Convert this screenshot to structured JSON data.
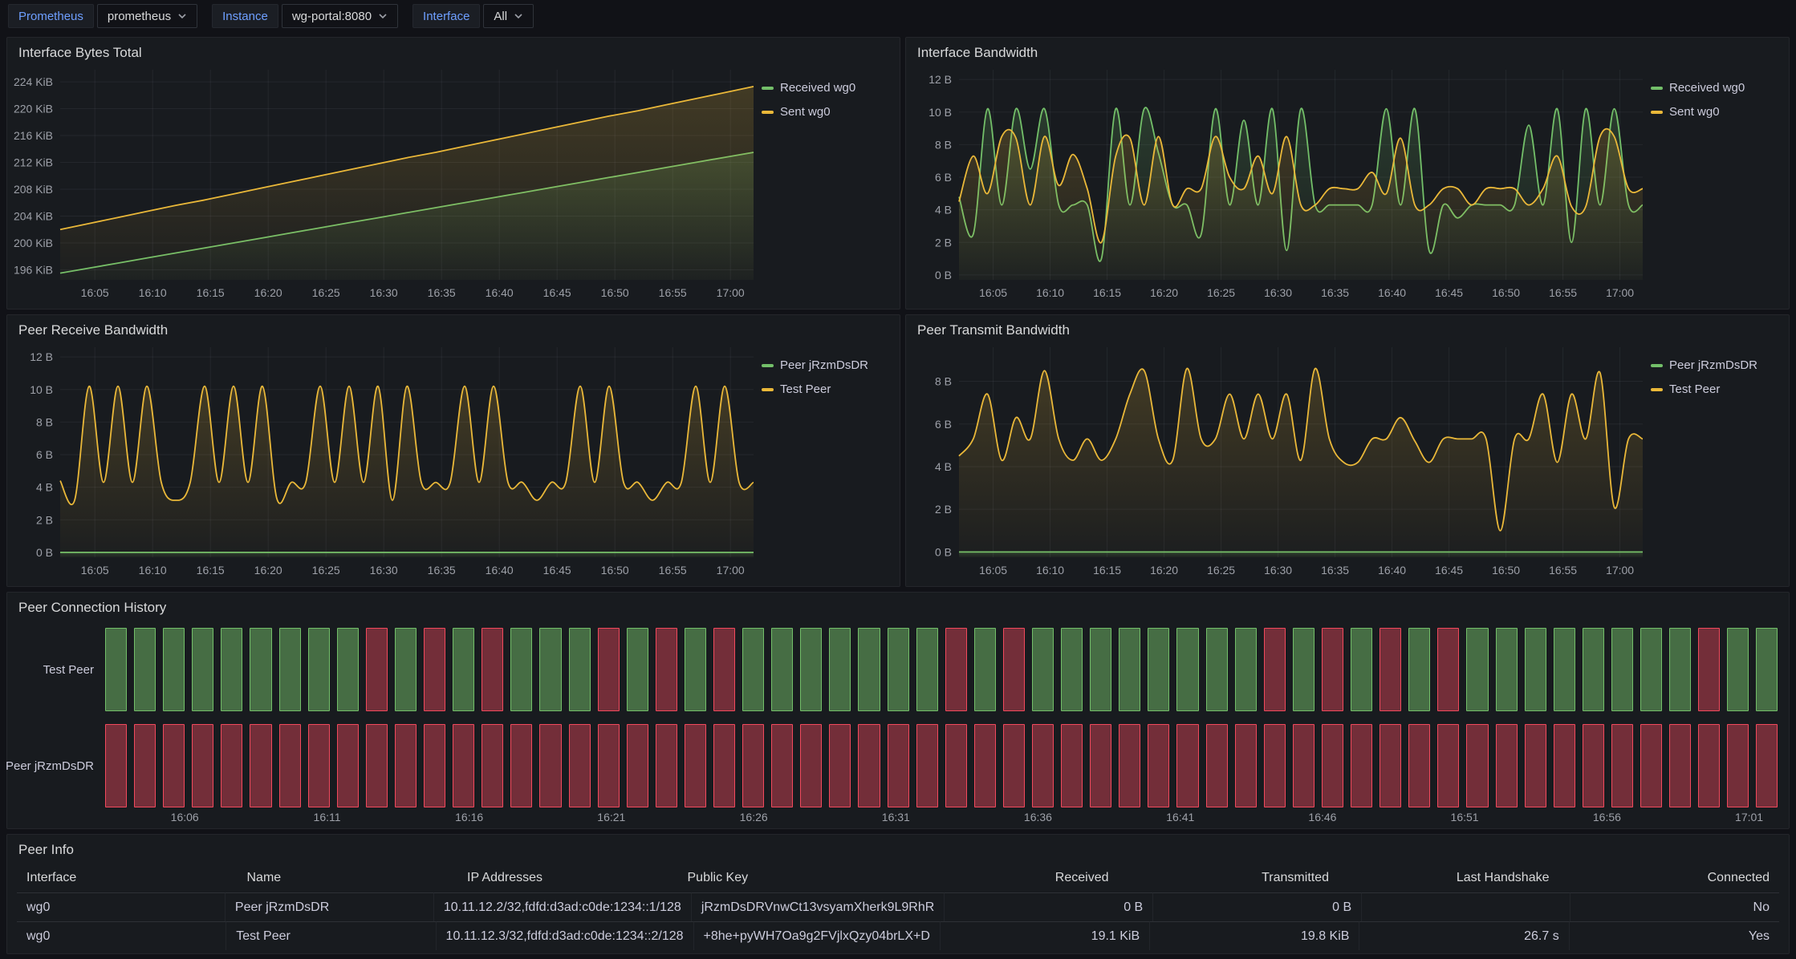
{
  "topbar": {
    "variables": [
      {
        "label": "Prometheus",
        "value": "prometheus"
      },
      {
        "label": "Instance",
        "value": "wg-portal:8080"
      },
      {
        "label": "Interface",
        "value": "All"
      }
    ]
  },
  "colors": {
    "green": "#73BF69",
    "yellow": "#EAB839",
    "red": "#F2495C",
    "connected_yes": "#73BF69",
    "connected_no": "#F2495C"
  },
  "chart_data": [
    {
      "id": "interface-bytes-total",
      "type": "line",
      "title": "Interface Bytes Total",
      "smooth": false,
      "x_start": 2,
      "x_step": 2.5,
      "xlim": [
        2,
        62
      ],
      "ylim": [
        194.5,
        225.8
      ],
      "yticks": [
        196,
        200,
        204,
        208,
        212,
        216,
        220,
        224
      ],
      "ytick_labels": [
        "196 KiB",
        "200 KiB",
        "204 KiB",
        "208 KiB",
        "212 KiB",
        "216 KiB",
        "220 KiB",
        "224 KiB"
      ],
      "xticks": [
        5,
        10,
        15,
        20,
        25,
        30,
        35,
        40,
        45,
        50,
        55,
        60
      ],
      "xtick_labels": [
        "16:05",
        "16:10",
        "16:15",
        "16:20",
        "16:25",
        "16:30",
        "16:35",
        "16:40",
        "16:45",
        "16:50",
        "16:55",
        "17:00"
      ],
      "series": [
        {
          "name": "Received wg0",
          "color": "#73BF69",
          "values": [
            195.5,
            196.25,
            197,
            197.75,
            198.5,
            199.25,
            200,
            200.75,
            201.5,
            202.25,
            203,
            203.75,
            204.5,
            205.25,
            206,
            206.75,
            207.5,
            208.25,
            209,
            209.75,
            210.5,
            211.25,
            212,
            212.75,
            213.5
          ]
        },
        {
          "name": "Sent wg0",
          "color": "#EAB839",
          "values": [
            202,
            202.9,
            203.8,
            204.7,
            205.6,
            206.4,
            207.3,
            208.2,
            209.1,
            210,
            210.9,
            211.8,
            212.7,
            213.5,
            214.4,
            215.3,
            216.2,
            217.1,
            218,
            218.9,
            219.7,
            220.6,
            221.5,
            222.4,
            223.3
          ]
        }
      ]
    },
    {
      "id": "interface-bandwidth",
      "type": "line",
      "title": "Interface Bandwidth",
      "smooth": true,
      "x_start": 2,
      "x_step": 1.25,
      "xlim": [
        2,
        62
      ],
      "ylim": [
        -0.3,
        12.6
      ],
      "yticks": [
        0,
        2,
        4,
        6,
        8,
        10,
        12
      ],
      "ytick_labels": [
        "0 B",
        "2 B",
        "4 B",
        "6 B",
        "8 B",
        "10 B",
        "12 B"
      ],
      "xticks": [
        5,
        10,
        15,
        20,
        25,
        30,
        35,
        40,
        45,
        50,
        55,
        60
      ],
      "xtick_labels": [
        "16:05",
        "16:10",
        "16:15",
        "16:20",
        "16:25",
        "16:30",
        "16:35",
        "16:40",
        "16:45",
        "16:50",
        "16:55",
        "17:00"
      ],
      "series": [
        {
          "name": "Received wg0",
          "color": "#73BF69",
          "values": [
            4.8,
            2.5,
            10.2,
            4.3,
            10.2,
            6.5,
            10.2,
            4.3,
            4.3,
            4.3,
            1.0,
            10.2,
            4.3,
            10.2,
            7.5,
            4.3,
            4.3,
            2.5,
            10.2,
            4.3,
            9.5,
            4.3,
            10.2,
            1.5,
            10.2,
            4.3,
            4.3,
            4.3,
            4.3,
            4.3,
            10.2,
            4.3,
            10.2,
            1.5,
            4.3,
            3.5,
            4.3,
            4.3,
            4.3,
            4.3,
            9.2,
            4.3,
            10.2,
            2.0,
            10.2,
            4.3,
            10.2,
            4.3,
            4.3
          ]
        },
        {
          "name": "Sent wg0",
          "color": "#EAB839",
          "values": [
            4.5,
            7.3,
            5.0,
            8.5,
            8.4,
            4.3,
            8.5,
            5.5,
            7.4,
            5.3,
            2.0,
            7.3,
            8.4,
            4.3,
            8.5,
            4.3,
            5.3,
            5.3,
            8.5,
            6.0,
            5.3,
            7.3,
            5.0,
            8.5,
            4.3,
            4.3,
            5.3,
            5.3,
            5.3,
            6.3,
            5.0,
            8.4,
            4.3,
            4.3,
            5.3,
            5.3,
            4.3,
            5.3,
            5.3,
            5.3,
            4.3,
            5.3,
            7.3,
            4.2,
            4.2,
            8.5,
            8.5,
            5.3,
            5.3
          ]
        }
      ]
    },
    {
      "id": "peer-receive-bandwidth",
      "type": "line",
      "title": "Peer Receive Bandwidth",
      "smooth": true,
      "x_start": 2,
      "x_step": 1.25,
      "xlim": [
        2,
        62
      ],
      "ylim": [
        -0.3,
        12.6
      ],
      "yticks": [
        0,
        2,
        4,
        6,
        8,
        10,
        12
      ],
      "ytick_labels": [
        "0 B",
        "2 B",
        "4 B",
        "6 B",
        "8 B",
        "10 B",
        "12 B"
      ],
      "xticks": [
        5,
        10,
        15,
        20,
        25,
        30,
        35,
        40,
        45,
        50,
        55,
        60
      ],
      "xtick_labels": [
        "16:05",
        "16:10",
        "16:15",
        "16:20",
        "16:25",
        "16:30",
        "16:35",
        "16:40",
        "16:45",
        "16:50",
        "16:55",
        "17:00"
      ],
      "series": [
        {
          "name": "Peer jRzmDsDR",
          "color": "#73BF69",
          "values": [
            0,
            0,
            0,
            0,
            0,
            0,
            0,
            0,
            0,
            0,
            0,
            0,
            0,
            0,
            0,
            0,
            0,
            0,
            0,
            0,
            0,
            0,
            0,
            0,
            0,
            0,
            0,
            0,
            0,
            0,
            0,
            0,
            0,
            0,
            0,
            0,
            0,
            0,
            0,
            0,
            0,
            0,
            0,
            0,
            0,
            0,
            0,
            0,
            0
          ]
        },
        {
          "name": "Test Peer",
          "color": "#EAB839",
          "values": [
            4.4,
            3.2,
            10.2,
            4.3,
            10.2,
            4.3,
            10.2,
            4.3,
            3.2,
            4.3,
            10.2,
            4.3,
            10.2,
            4.3,
            10.2,
            3.3,
            4.3,
            4.3,
            10.2,
            4.3,
            10.2,
            4.3,
            10.2,
            3.2,
            10.2,
            4.3,
            4.3,
            4.3,
            10.2,
            4.3,
            10.2,
            4.3,
            4.3,
            3.2,
            4.3,
            4.3,
            10.2,
            4.3,
            10.2,
            4.3,
            4.3,
            3.2,
            4.3,
            4.3,
            10.2,
            4.3,
            10.2,
            4.3,
            4.3
          ]
        }
      ]
    },
    {
      "id": "peer-transmit-bandwidth",
      "type": "line",
      "title": "Peer Transmit Bandwidth",
      "smooth": true,
      "x_start": 2,
      "x_step": 1.25,
      "xlim": [
        2,
        62
      ],
      "ylim": [
        -0.25,
        9.6
      ],
      "yticks": [
        0,
        2,
        4,
        6,
        8
      ],
      "ytick_labels": [
        "0 B",
        "2 B",
        "4 B",
        "6 B",
        "8 B"
      ],
      "xticks": [
        5,
        10,
        15,
        20,
        25,
        30,
        35,
        40,
        45,
        50,
        55,
        60
      ],
      "xtick_labels": [
        "16:05",
        "16:10",
        "16:15",
        "16:20",
        "16:25",
        "16:30",
        "16:35",
        "16:40",
        "16:45",
        "16:50",
        "16:55",
        "17:00"
      ],
      "series": [
        {
          "name": "Peer jRzmDsDR",
          "color": "#73BF69",
          "values": [
            0,
            0,
            0,
            0,
            0,
            0,
            0,
            0,
            0,
            0,
            0,
            0,
            0,
            0,
            0,
            0,
            0,
            0,
            0,
            0,
            0,
            0,
            0,
            0,
            0,
            0,
            0,
            0,
            0,
            0,
            0,
            0,
            0,
            0,
            0,
            0,
            0,
            0,
            0,
            0,
            0,
            0,
            0,
            0,
            0,
            0,
            0,
            0,
            0
          ]
        },
        {
          "name": "Test Peer",
          "color": "#EAB839",
          "values": [
            4.5,
            5.3,
            7.4,
            4.3,
            6.3,
            5.3,
            8.5,
            5.3,
            4.3,
            5.3,
            4.3,
            5.3,
            7.4,
            8.5,
            5.3,
            4.3,
            8.6,
            5.3,
            5.3,
            7.4,
            5.3,
            7.4,
            5.3,
            7.4,
            4.3,
            8.6,
            5.3,
            4.2,
            4.2,
            5.3,
            5.3,
            6.3,
            5.2,
            4.2,
            5.3,
            5.3,
            5.3,
            5.3,
            1.0,
            5.3,
            5.3,
            7.4,
            4.2,
            7.4,
            5.3,
            8.4,
            2.1,
            5.3,
            5.3
          ]
        }
      ]
    }
  ],
  "history": {
    "title": "Peer Connection History",
    "rows": [
      {
        "label": "Test Peer",
        "states": "GGGGGGGGGRGRGRGGGRGRGRGGGGGGGRGRGGGGGGGGRGRGRGRGGGGGGGGRGG"
      },
      {
        "label": "Peer jRzmDsDR",
        "states": "RRRRRRRRRRRRRRRRRRRRRRRRRRRRRRRRRRRRRRRRRRRRRRRRRRRRRRRRRR"
      }
    ],
    "xticks": [
      "16:06",
      "16:11",
      "16:16",
      "16:21",
      "16:26",
      "16:31",
      "16:36",
      "16:41",
      "16:46",
      "16:51",
      "16:56",
      "17:01"
    ]
  },
  "table": {
    "title": "Peer Info",
    "columns": [
      {
        "label": "Interface",
        "align": "left"
      },
      {
        "label": "Name",
        "align": "left"
      },
      {
        "label": "IP Addresses",
        "align": "left"
      },
      {
        "label": "Public Key",
        "align": "left"
      },
      {
        "label": "Received",
        "align": "right"
      },
      {
        "label": "Transmitted",
        "align": "right"
      },
      {
        "label": "Last Handshake",
        "align": "right"
      },
      {
        "label": "Connected",
        "align": "right"
      }
    ],
    "rows": [
      {
        "cells": [
          "wg0",
          "Peer jRzmDsDR",
          "10.11.12.2/32,fdfd:d3ad:c0de:1234::1/128",
          "jRzmDsDRVnwCt13vsyamXherk9L9RhR",
          "0 B",
          "0 B",
          "",
          "No"
        ]
      },
      {
        "cells": [
          "wg0",
          "Test Peer",
          "10.11.12.3/32,fdfd:d3ad:c0de:1234::2/128",
          "+8he+pyWH7Oa9g2FVjlxQzy04brLX+D",
          "19.1 KiB",
          "19.8 KiB",
          "26.7 s",
          "Yes"
        ]
      }
    ]
  }
}
